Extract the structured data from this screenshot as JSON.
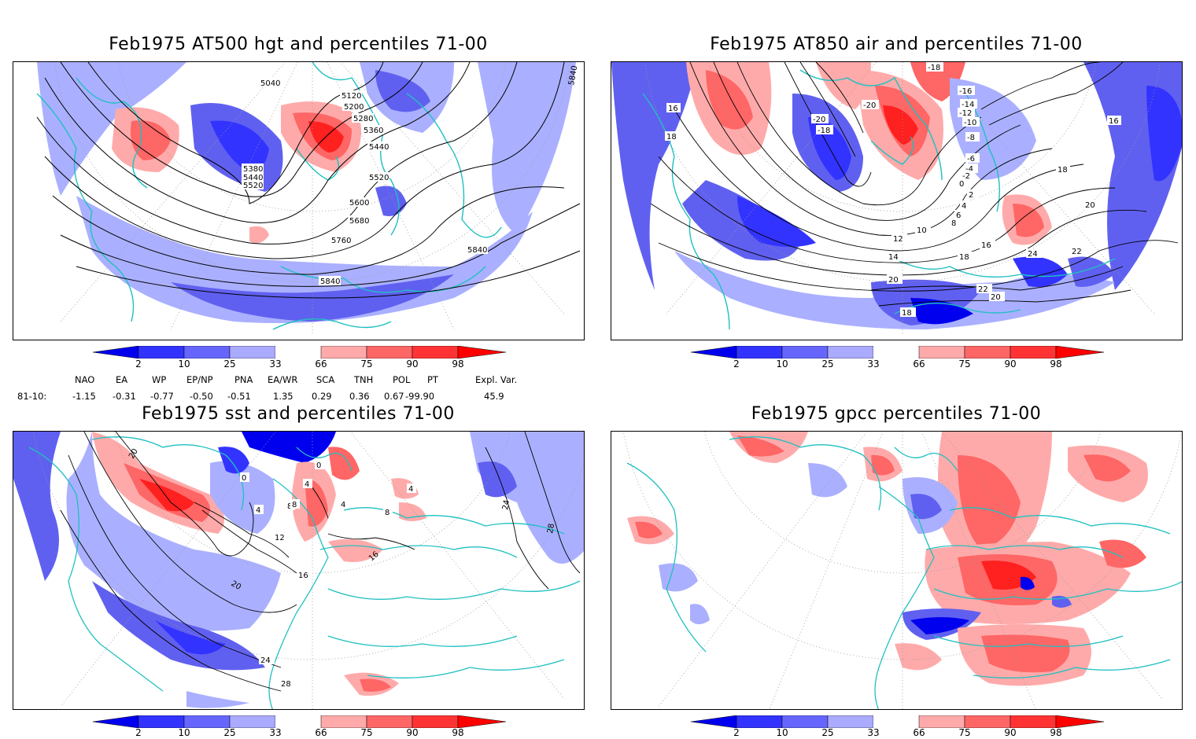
{
  "panels": [
    {
      "title": "Feb1975 AT500 hgt and percentiles 71-00",
      "contour_labels": [
        "5040",
        "5120",
        "5200",
        "5280",
        "5360",
        "5440",
        "5520",
        "5600",
        "5680",
        "5760",
        "5840",
        "5380",
        "5440",
        "5520",
        "5840",
        "5840"
      ]
    },
    {
      "title": "Feb1975 AT850 air and percentiles 71-00",
      "contour_labels": [
        "-18",
        "-16",
        "-14",
        "-12",
        "-10",
        "-8",
        "-6",
        "-4",
        "-2",
        "0",
        "2",
        "4",
        "6",
        "8",
        "10",
        "12",
        "14",
        "16",
        "18",
        "20",
        "22",
        "24",
        "-20",
        "-20",
        "-18",
        "16",
        "18",
        "16",
        "18",
        "20",
        "20",
        "18",
        "22"
      ]
    },
    {
      "title": "Feb1975 sst and percentiles 71-00",
      "contour_labels": [
        "20",
        "0",
        "4",
        "8",
        "12",
        "16",
        "20",
        "24",
        "28",
        "4",
        "8",
        "4",
        "0",
        "16",
        "8",
        "4",
        "24",
        "28"
      ]
    },
    {
      "title": "Feb1975 gpcc percentiles 71-00",
      "contour_labels": []
    }
  ],
  "colorbar": {
    "labels": [
      "2",
      "10",
      "25",
      "33",
      "66",
      "75",
      "90",
      "98"
    ],
    "colors": [
      "#0000ee",
      "#3333ff",
      "#6666ff",
      "#aaaaff",
      "#ffffff",
      "#ffaaaa",
      "#ff6666",
      "#ff3333",
      "#ff0000"
    ]
  },
  "teleconnections": {
    "headers": [
      "NAO",
      "EA",
      "WP",
      "EP/NP",
      "PNA",
      "EA/WR",
      "SCA",
      "TNH",
      "POL",
      "PT",
      "Expl. Var."
    ],
    "row_label": "81-10:",
    "values": [
      "-1.15",
      "-0.31",
      "-0.77",
      "-0.50",
      "-0.51",
      "1.35",
      "0.29",
      "0.36",
      "0.67",
      "-99.90",
      "45.9"
    ]
  },
  "colors": {
    "coast": "#20c0c0",
    "contour": "#000000",
    "blue_strong": "#0000ee",
    "blue_mid": "#6060f0",
    "blue_light": "#aab0ff",
    "red_light": "#ffaaaa",
    "red_mid": "#ff6666",
    "red_strong": "#ff2020"
  }
}
